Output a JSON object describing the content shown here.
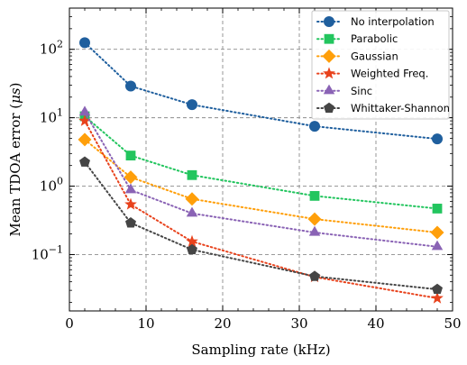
{
  "chart_data": {
    "type": "line",
    "xlabel": "Sampling rate (kHz)",
    "ylabel": "Mean TDOA error (μs)",
    "ylabel_parts": [
      "Mean TDOA error (",
      "μs",
      ")"
    ],
    "xlim": [
      0,
      50
    ],
    "ylim": [
      0.015,
      400
    ],
    "yscale": "log",
    "grid": true,
    "legend_position": "top-right",
    "x_ticks": [
      0,
      10,
      20,
      30,
      40,
      50
    ],
    "x_tick_labels": [
      "0",
      "10",
      "20",
      "30",
      "40",
      "50"
    ],
    "y_ticks": [
      0.1,
      1,
      10,
      100
    ],
    "y_tick_labels": [
      {
        "base": "10",
        "exp": "−1"
      },
      {
        "base": "10",
        "exp": "0"
      },
      {
        "base": "10",
        "exp": "1"
      },
      {
        "base": "10",
        "exp": "2"
      }
    ],
    "x": [
      2,
      8,
      16,
      32,
      48
    ],
    "series": [
      {
        "name": "No interpolation",
        "color": "#1f5f9e",
        "marker": "circle",
        "values": [
          125,
          29,
          15.5,
          7.5,
          4.9
        ]
      },
      {
        "name": "Parabolic",
        "color": "#22c55e",
        "marker": "square",
        "values": [
          10.5,
          2.8,
          1.45,
          0.72,
          0.47
        ]
      },
      {
        "name": "Gaussian",
        "color": "#ff9f0a",
        "marker": "diamond",
        "values": [
          4.8,
          1.35,
          0.65,
          0.33,
          0.21
        ]
      },
      {
        "name": "Weighted Freq.",
        "color": "#e8421c",
        "marker": "star",
        "values": [
          9.0,
          0.54,
          0.155,
          0.047,
          0.023
        ]
      },
      {
        "name": "Sinc",
        "color": "#8a63b5",
        "marker": "triangle",
        "values": [
          12,
          0.88,
          0.4,
          0.21,
          0.13
        ]
      },
      {
        "name": "Whittaker-Shannon",
        "color": "#454545",
        "marker": "pentagon",
        "values": [
          2.25,
          0.29,
          0.118,
          0.048,
          0.031
        ]
      }
    ]
  }
}
